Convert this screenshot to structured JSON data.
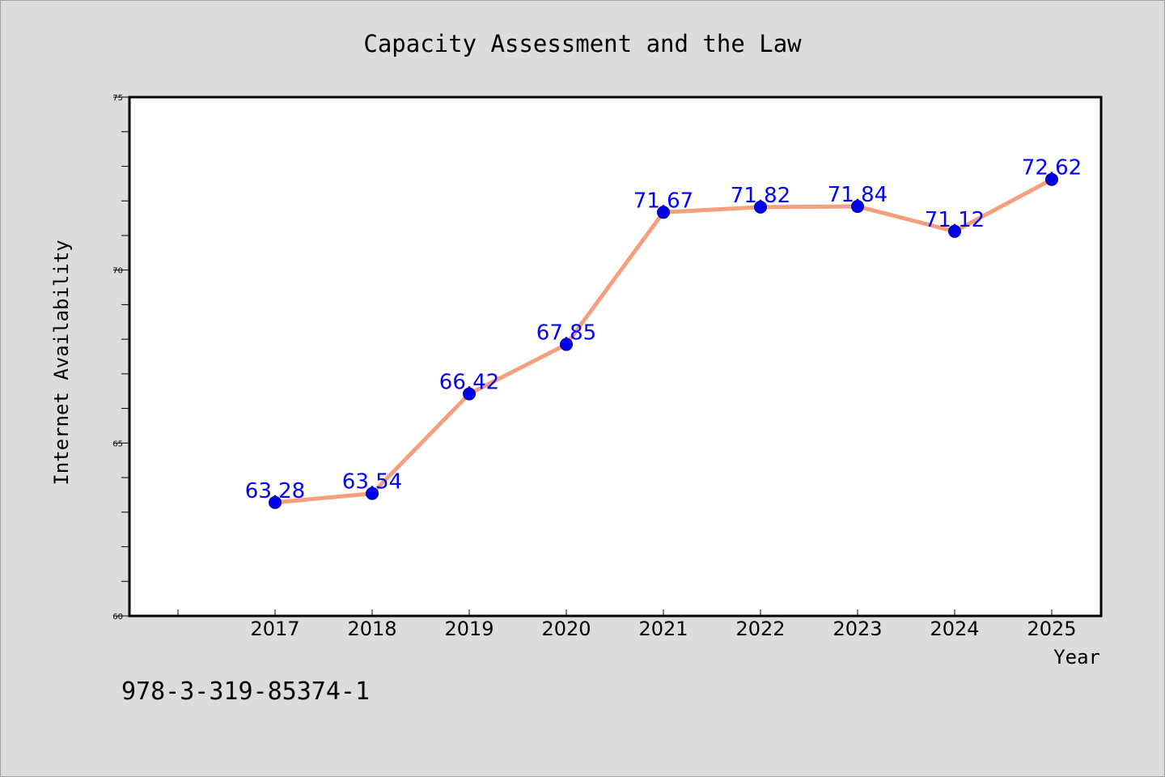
{
  "chart_data": {
    "type": "line",
    "title": "Capacity Assessment and the Law",
    "xlabel": "Year",
    "ylabel": "Internet Availability",
    "categories": [
      "2017",
      "2018",
      "2019",
      "2020",
      "2021",
      "2022",
      "2023",
      "2024",
      "2025"
    ],
    "series": [
      {
        "values": [
          63.28,
          63.54,
          66.42,
          67.85,
          71.67,
          71.82,
          71.84,
          71.12,
          72.62
        ],
        "labels": [
          "63.28",
          "63.54",
          "66.42",
          "67.85",
          "71.67",
          "71.82",
          "71.84",
          "71.12",
          "72.62"
        ],
        "line_color": "#f4a07f",
        "marker_color": "#0000ee",
        "label_color": "#0000ff"
      }
    ],
    "ylim": [
      60,
      75
    ],
    "yticks": [
      "60",
      "65",
      "70",
      "75"
    ],
    "grid": false,
    "legend": "none"
  },
  "footer": {
    "isbn": "978-3-319-85374-1"
  },
  "colors": {
    "background": "#dcdcdc",
    "plot_background": "#ffffff",
    "frame": "#000000"
  }
}
